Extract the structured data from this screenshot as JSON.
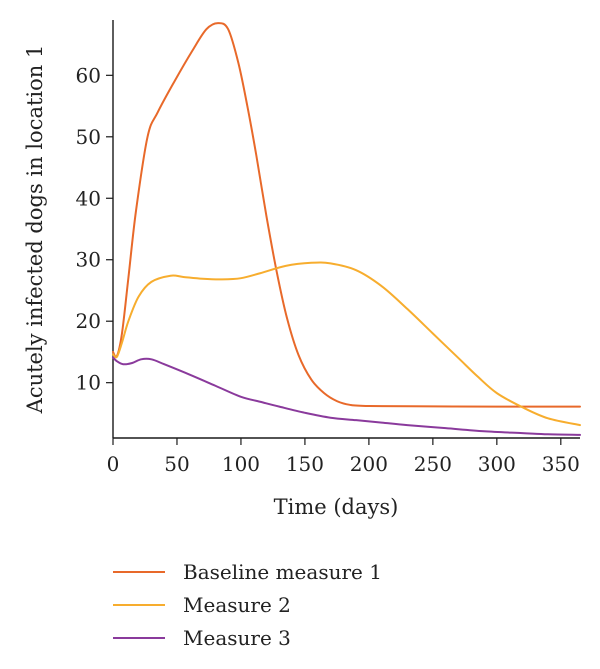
{
  "chart_data": {
    "type": "line",
    "title": "",
    "xlabel": "Time (days)",
    "ylabel": "Acutely infected dogs in location 1",
    "xlim": [
      0,
      365
    ],
    "ylim": [
      1,
      69
    ],
    "xticks": [
      0,
      50,
      100,
      150,
      200,
      250,
      300,
      350
    ],
    "yticks": [
      10,
      20,
      30,
      40,
      50,
      60
    ],
    "grid": false,
    "legend_position": "below",
    "series": [
      {
        "name": "Baseline measure 1",
        "color": "#e8692a",
        "points": [
          [
            0,
            15
          ],
          [
            3,
            14.3
          ],
          [
            7,
            18
          ],
          [
            12,
            27
          ],
          [
            18,
            38
          ],
          [
            27,
            50
          ],
          [
            35,
            54
          ],
          [
            48,
            59
          ],
          [
            62,
            64
          ],
          [
            73,
            67.5
          ],
          [
            82,
            68.5
          ],
          [
            90,
            67.5
          ],
          [
            98,
            62
          ],
          [
            105,
            55
          ],
          [
            112,
            47
          ],
          [
            120,
            37
          ],
          [
            128,
            28
          ],
          [
            136,
            20.5
          ],
          [
            145,
            14.5
          ],
          [
            155,
            10.5
          ],
          [
            165,
            8.3
          ],
          [
            175,
            7
          ],
          [
            185,
            6.4
          ],
          [
            200,
            6.2
          ],
          [
            250,
            6.15
          ],
          [
            300,
            6.1
          ],
          [
            365,
            6.1
          ]
        ]
      },
      {
        "name": "Measure 2",
        "color": "#f7ad2e",
        "points": [
          [
            0,
            14.6
          ],
          [
            3,
            14.2
          ],
          [
            7,
            16.5
          ],
          [
            12,
            20
          ],
          [
            20,
            24
          ],
          [
            30,
            26.4
          ],
          [
            45,
            27.4
          ],
          [
            55,
            27.2
          ],
          [
            70,
            26.9
          ],
          [
            85,
            26.8
          ],
          [
            100,
            27
          ],
          [
            115,
            27.8
          ],
          [
            135,
            29
          ],
          [
            155,
            29.5
          ],
          [
            170,
            29.4
          ],
          [
            190,
            28.3
          ],
          [
            210,
            25.7
          ],
          [
            230,
            22
          ],
          [
            250,
            18
          ],
          [
            270,
            14
          ],
          [
            285,
            11
          ],
          [
            300,
            8.3
          ],
          [
            320,
            6
          ],
          [
            340,
            4.2
          ],
          [
            365,
            3.1
          ]
        ]
      },
      {
        "name": "Measure 3",
        "color": "#8a3a9c",
        "points": [
          [
            0,
            14.1
          ],
          [
            3,
            13.5
          ],
          [
            8,
            13
          ],
          [
            15,
            13.2
          ],
          [
            22,
            13.8
          ],
          [
            30,
            13.8
          ],
          [
            40,
            13
          ],
          [
            60,
            11.3
          ],
          [
            80,
            9.5
          ],
          [
            100,
            7.7
          ],
          [
            115,
            6.9
          ],
          [
            130,
            6.1
          ],
          [
            150,
            5.1
          ],
          [
            170,
            4.3
          ],
          [
            190,
            3.9
          ],
          [
            210,
            3.5
          ],
          [
            230,
            3.1
          ],
          [
            260,
            2.6
          ],
          [
            290,
            2.1
          ],
          [
            320,
            1.8
          ],
          [
            340,
            1.6
          ],
          [
            365,
            1.5
          ]
        ]
      }
    ]
  }
}
